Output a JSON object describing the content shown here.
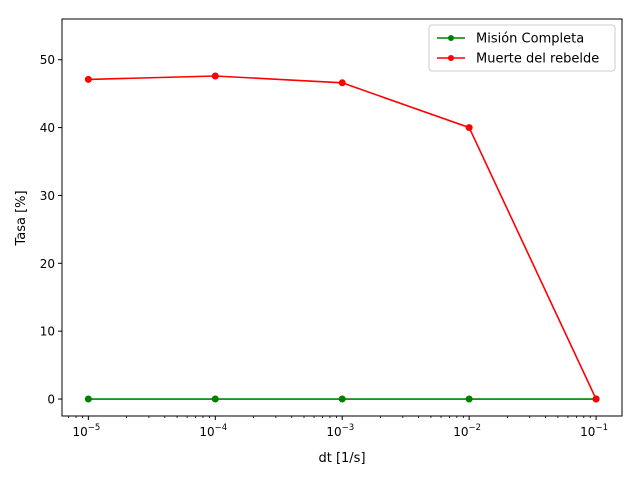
{
  "chart_data": {
    "type": "line",
    "xlabel": "dt [1/s]",
    "ylabel": "Tasa [%]",
    "xscale": "log",
    "x": [
      1e-05,
      0.0001,
      0.001,
      0.01,
      0.1
    ],
    "xlim": [
      6.2e-06,
      0.16
    ],
    "ylim": [
      -2.5,
      56
    ],
    "x_ticks": [
      {
        "value": 1e-05,
        "base": "10",
        "exp": "−5"
      },
      {
        "value": 0.0001,
        "base": "10",
        "exp": "−4"
      },
      {
        "value": 0.001,
        "base": "10",
        "exp": "−3"
      },
      {
        "value": 0.01,
        "base": "10",
        "exp": "−2"
      },
      {
        "value": 0.1,
        "base": "10",
        "exp": "−1"
      }
    ],
    "y_ticks": [
      "0",
      "10",
      "20",
      "30",
      "40",
      "50"
    ],
    "grid": false,
    "legend_position": "top-right",
    "series": [
      {
        "name": "Misión Completa",
        "color": "#008000",
        "values": [
          0,
          0,
          0,
          0,
          0
        ]
      },
      {
        "name": "Muerte del rebelde",
        "color": "#ff0000",
        "values": [
          47.1,
          47.6,
          46.6,
          40.0,
          0
        ]
      }
    ]
  }
}
